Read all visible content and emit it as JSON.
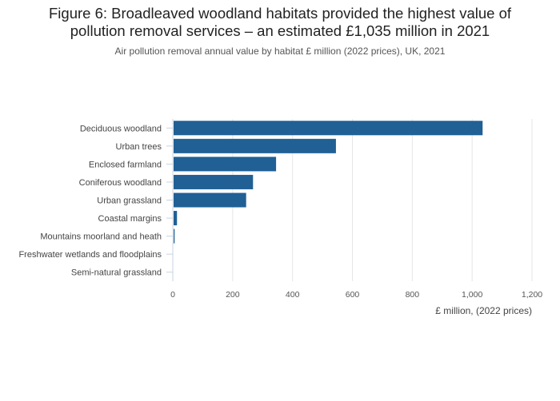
{
  "figure": {
    "title_line1": "Figure 6: Broadleaved woodland habitats provided the highest value of",
    "title_line2": "pollution removal services – an estimated £1,035 million in 2021",
    "subtitle": "Air pollution removal annual value by habitat £ million (2022 prices), UK, 2021"
  },
  "chart_data": {
    "type": "bar",
    "orientation": "horizontal",
    "categories": [
      "Deciduous woodland",
      "Urban trees",
      "Enclosed farmland",
      "Coniferous woodland",
      "Urban grassland",
      "Coastal margins",
      "Mountains moorland and heath",
      "Freshwater wetlands and floodplains",
      "Semi-natural grassland"
    ],
    "values": [
      1035,
      545,
      345,
      268,
      245,
      14,
      6,
      0.5,
      0.3
    ],
    "xlabel": "£ million, (2022 prices)",
    "xlim": [
      0,
      1200
    ],
    "xticks": [
      0,
      200,
      400,
      600,
      800,
      1000,
      1200
    ],
    "xtick_labels": [
      "0",
      "200",
      "400",
      "600",
      "800",
      "1,000",
      "1,200"
    ],
    "grid": "vertical",
    "bar_color": "#206095"
  }
}
